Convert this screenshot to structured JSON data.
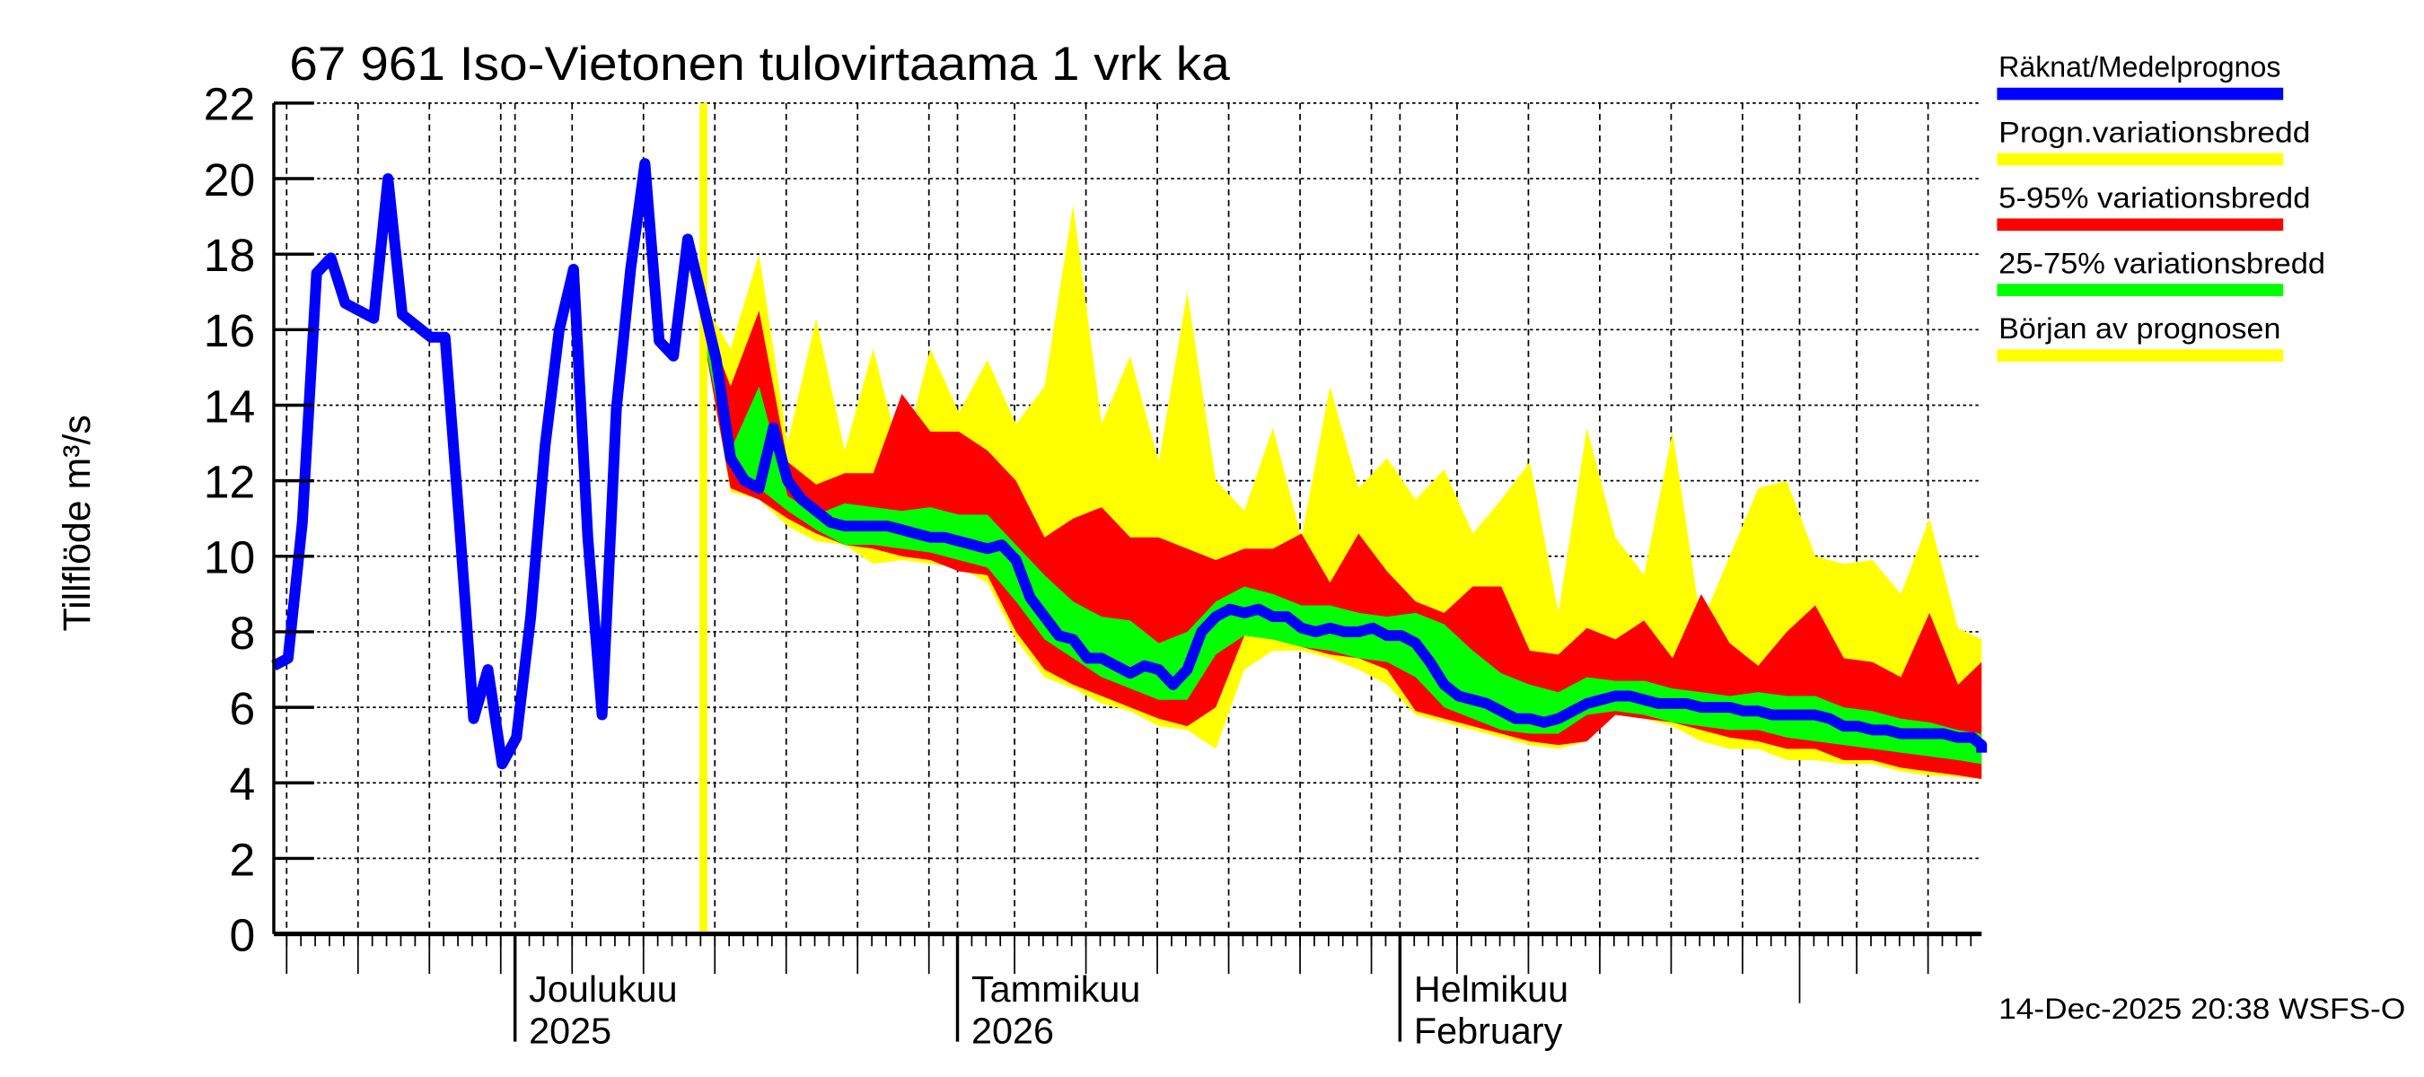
{
  "chart_data": {
    "type": "area",
    "title": "67 961 Iso-Vietonen tulovirtaama 1 vrk ka",
    "ylabel": "Tillflöde m³/s",
    "xlabel": "",
    "ylim": [
      0,
      22
    ],
    "yticks": [
      0,
      2,
      4,
      6,
      8,
      10,
      12,
      14,
      16,
      18,
      20,
      22
    ],
    "x_unit": "days relative to 1 December 2025",
    "xlim": [
      -16.9,
      102.75
    ],
    "grid": true,
    "month_labels": [
      {
        "day": 0,
        "line1": "Joulukuu",
        "line2": "2025"
      },
      {
        "day": 31,
        "line1": "Tammikuu",
        "line2": "2026"
      },
      {
        "day": 62,
        "line1": "Helmikuu",
        "line2": "February"
      }
    ],
    "forecast_start_day": 13.2,
    "legend": [
      {
        "label": "Räknat/Medelprognos",
        "color": "#0000ff"
      },
      {
        "label": "Progn.variationsbredd",
        "color": "#ffff00"
      },
      {
        "label": "5-95% variationsbredd",
        "color": "#ff0000"
      },
      {
        "label": "25-75% variationsbredd",
        "color": "#00ff00"
      },
      {
        "label": "Början av prognosen",
        "color": "#ffff00"
      }
    ],
    "legend_position": "right",
    "series": [
      {
        "name": "Räknat/Medelprognos",
        "x_start": -16.9,
        "x_step": 1,
        "values": [
          7.1,
          7.3,
          10.9,
          17.5,
          17.9,
          16.7,
          16.5,
          16.3,
          20.0,
          16.4,
          16.1,
          15.8,
          15.8,
          10.9,
          5.7,
          7.0,
          4.5,
          5.2,
          8.4,
          12.9,
          16.0,
          17.6,
          10.5,
          5.8,
          13.9,
          17.6,
          20.4,
          15.7,
          15.3,
          18.4,
          16.8,
          15.2,
          12.6,
          12.0,
          11.8,
          13.4,
          12.0,
          11.5,
          11.2,
          10.9,
          10.8,
          10.8,
          10.8,
          10.8,
          10.7,
          10.6,
          10.5,
          10.5,
          10.4,
          10.3,
          10.2,
          10.3,
          9.9,
          8.9,
          8.4,
          7.9,
          7.8,
          7.3,
          7.3,
          7.1,
          6.9,
          7.1,
          7.0,
          6.6,
          7.0,
          8.0,
          8.4,
          8.6,
          8.5,
          8.6,
          8.4,
          8.4,
          8.1,
          8.0,
          8.1,
          8.0,
          8.0,
          8.1,
          7.9,
          7.9,
          7.7,
          7.2,
          6.6,
          6.3,
          6.2,
          6.1,
          5.9,
          5.7,
          5.7,
          5.6,
          5.7,
          5.9,
          6.1,
          6.2,
          6.3,
          6.3,
          6.2,
          6.1,
          6.1,
          6.1,
          6.0,
          6.0,
          6.0,
          5.9,
          5.9,
          5.8,
          5.8,
          5.8,
          5.8,
          5.7,
          5.5,
          5.5,
          5.4,
          5.4,
          5.3,
          5.3,
          5.3,
          5.3,
          5.2,
          5.2,
          5.0,
          4.8
        ]
      }
    ],
    "bands": {
      "x_start": 13.1,
      "x_step": 2,
      "yellow_max": [
        16.8,
        15.5,
        18.0,
        13.0,
        16.3,
        12.8,
        15.5,
        12.5,
        15.5,
        13.8,
        15.2,
        13.5,
        14.5,
        19.3,
        13.5,
        15.3,
        12.5,
        17.0,
        12.0,
        11.2,
        13.4,
        10.5,
        14.5,
        11.8,
        12.6,
        11.5,
        12.3,
        10.6,
        11.5,
        12.5,
        8.5,
        13.4,
        10.5,
        9.5,
        13.3,
        8.2,
        10.0,
        11.8,
        12.0,
        10.0,
        9.8,
        9.9,
        9.0,
        11.0,
        8.1,
        7.8
      ],
      "red_max": [
        16.5,
        14.5,
        16.5,
        12.5,
        11.9,
        12.2,
        12.2,
        14.3,
        13.3,
        13.3,
        12.8,
        12.0,
        10.5,
        11.0,
        11.3,
        10.5,
        10.5,
        10.2,
        9.9,
        10.2,
        10.2,
        10.6,
        9.3,
        10.6,
        9.6,
        8.8,
        8.5,
        9.2,
        9.2,
        7.5,
        7.4,
        8.1,
        7.8,
        8.3,
        7.3,
        9.0,
        7.7,
        7.1,
        8.0,
        8.7,
        7.3,
        7.2,
        6.8,
        8.5,
        6.6,
        7.2
      ],
      "green_max": [
        16.5,
        12.8,
        14.5,
        11.6,
        11.1,
        11.4,
        11.3,
        11.2,
        11.3,
        11.1,
        11.1,
        10.3,
        9.5,
        8.8,
        8.4,
        8.3,
        7.7,
        8.0,
        8.8,
        9.2,
        9.0,
        8.7,
        8.7,
        8.5,
        8.4,
        8.5,
        8.2,
        7.5,
        6.9,
        6.6,
        6.4,
        6.8,
        6.7,
        6.7,
        6.5,
        6.4,
        6.3,
        6.4,
        6.3,
        6.3,
        6.0,
        5.9,
        5.7,
        5.6,
        5.4,
        5.3
      ],
      "green_min": [
        16.0,
        12.3,
        11.8,
        11.2,
        10.7,
        10.3,
        10.3,
        10.2,
        10.1,
        9.9,
        9.7,
        8.8,
        7.8,
        7.3,
        6.8,
        6.5,
        6.2,
        6.2,
        7.4,
        7.9,
        7.8,
        7.6,
        7.5,
        7.3,
        7.2,
        6.8,
        6.0,
        5.7,
        5.4,
        5.3,
        5.3,
        5.8,
        5.9,
        5.8,
        5.6,
        5.5,
        5.4,
        5.4,
        5.2,
        5.1,
        5.0,
        4.9,
        4.8,
        4.7,
        4.6,
        4.5
      ],
      "red_min": [
        16.0,
        11.8,
        11.5,
        11.0,
        10.6,
        10.3,
        10.2,
        10.0,
        9.9,
        9.6,
        9.5,
        8.0,
        7.0,
        6.6,
        6.3,
        6.0,
        5.7,
        5.5,
        6.0,
        7.9,
        7.8,
        7.6,
        7.4,
        7.3,
        7.0,
        5.9,
        5.7,
        5.5,
        5.3,
        5.1,
        5.0,
        5.1,
        5.8,
        5.7,
        5.6,
        5.4,
        5.2,
        5.1,
        4.9,
        4.9,
        4.6,
        4.6,
        4.4,
        4.3,
        4.2,
        4.1
      ],
      "yellow_min": [
        16.0,
        11.7,
        11.5,
        10.8,
        10.4,
        10.3,
        9.8,
        9.9,
        9.8,
        9.7,
        9.3,
        7.8,
        6.8,
        6.5,
        6.1,
        5.9,
        5.5,
        5.4,
        4.9,
        7.0,
        7.5,
        7.5,
        7.3,
        7.0,
        6.6,
        5.8,
        5.6,
        5.4,
        5.2,
        5.0,
        4.9,
        5.1,
        5.8,
        5.7,
        5.5,
        5.1,
        4.9,
        4.9,
        4.6,
        4.6,
        4.5,
        4.5,
        4.3,
        4.2,
        4.15,
        4.1
      ]
    },
    "footer": "14-Dec-2025 20:38 WSFS-O"
  },
  "colors": {
    "observed": "#0000ff",
    "yellow": "#ffff00",
    "red": "#ff0000",
    "green": "#00ff00"
  }
}
